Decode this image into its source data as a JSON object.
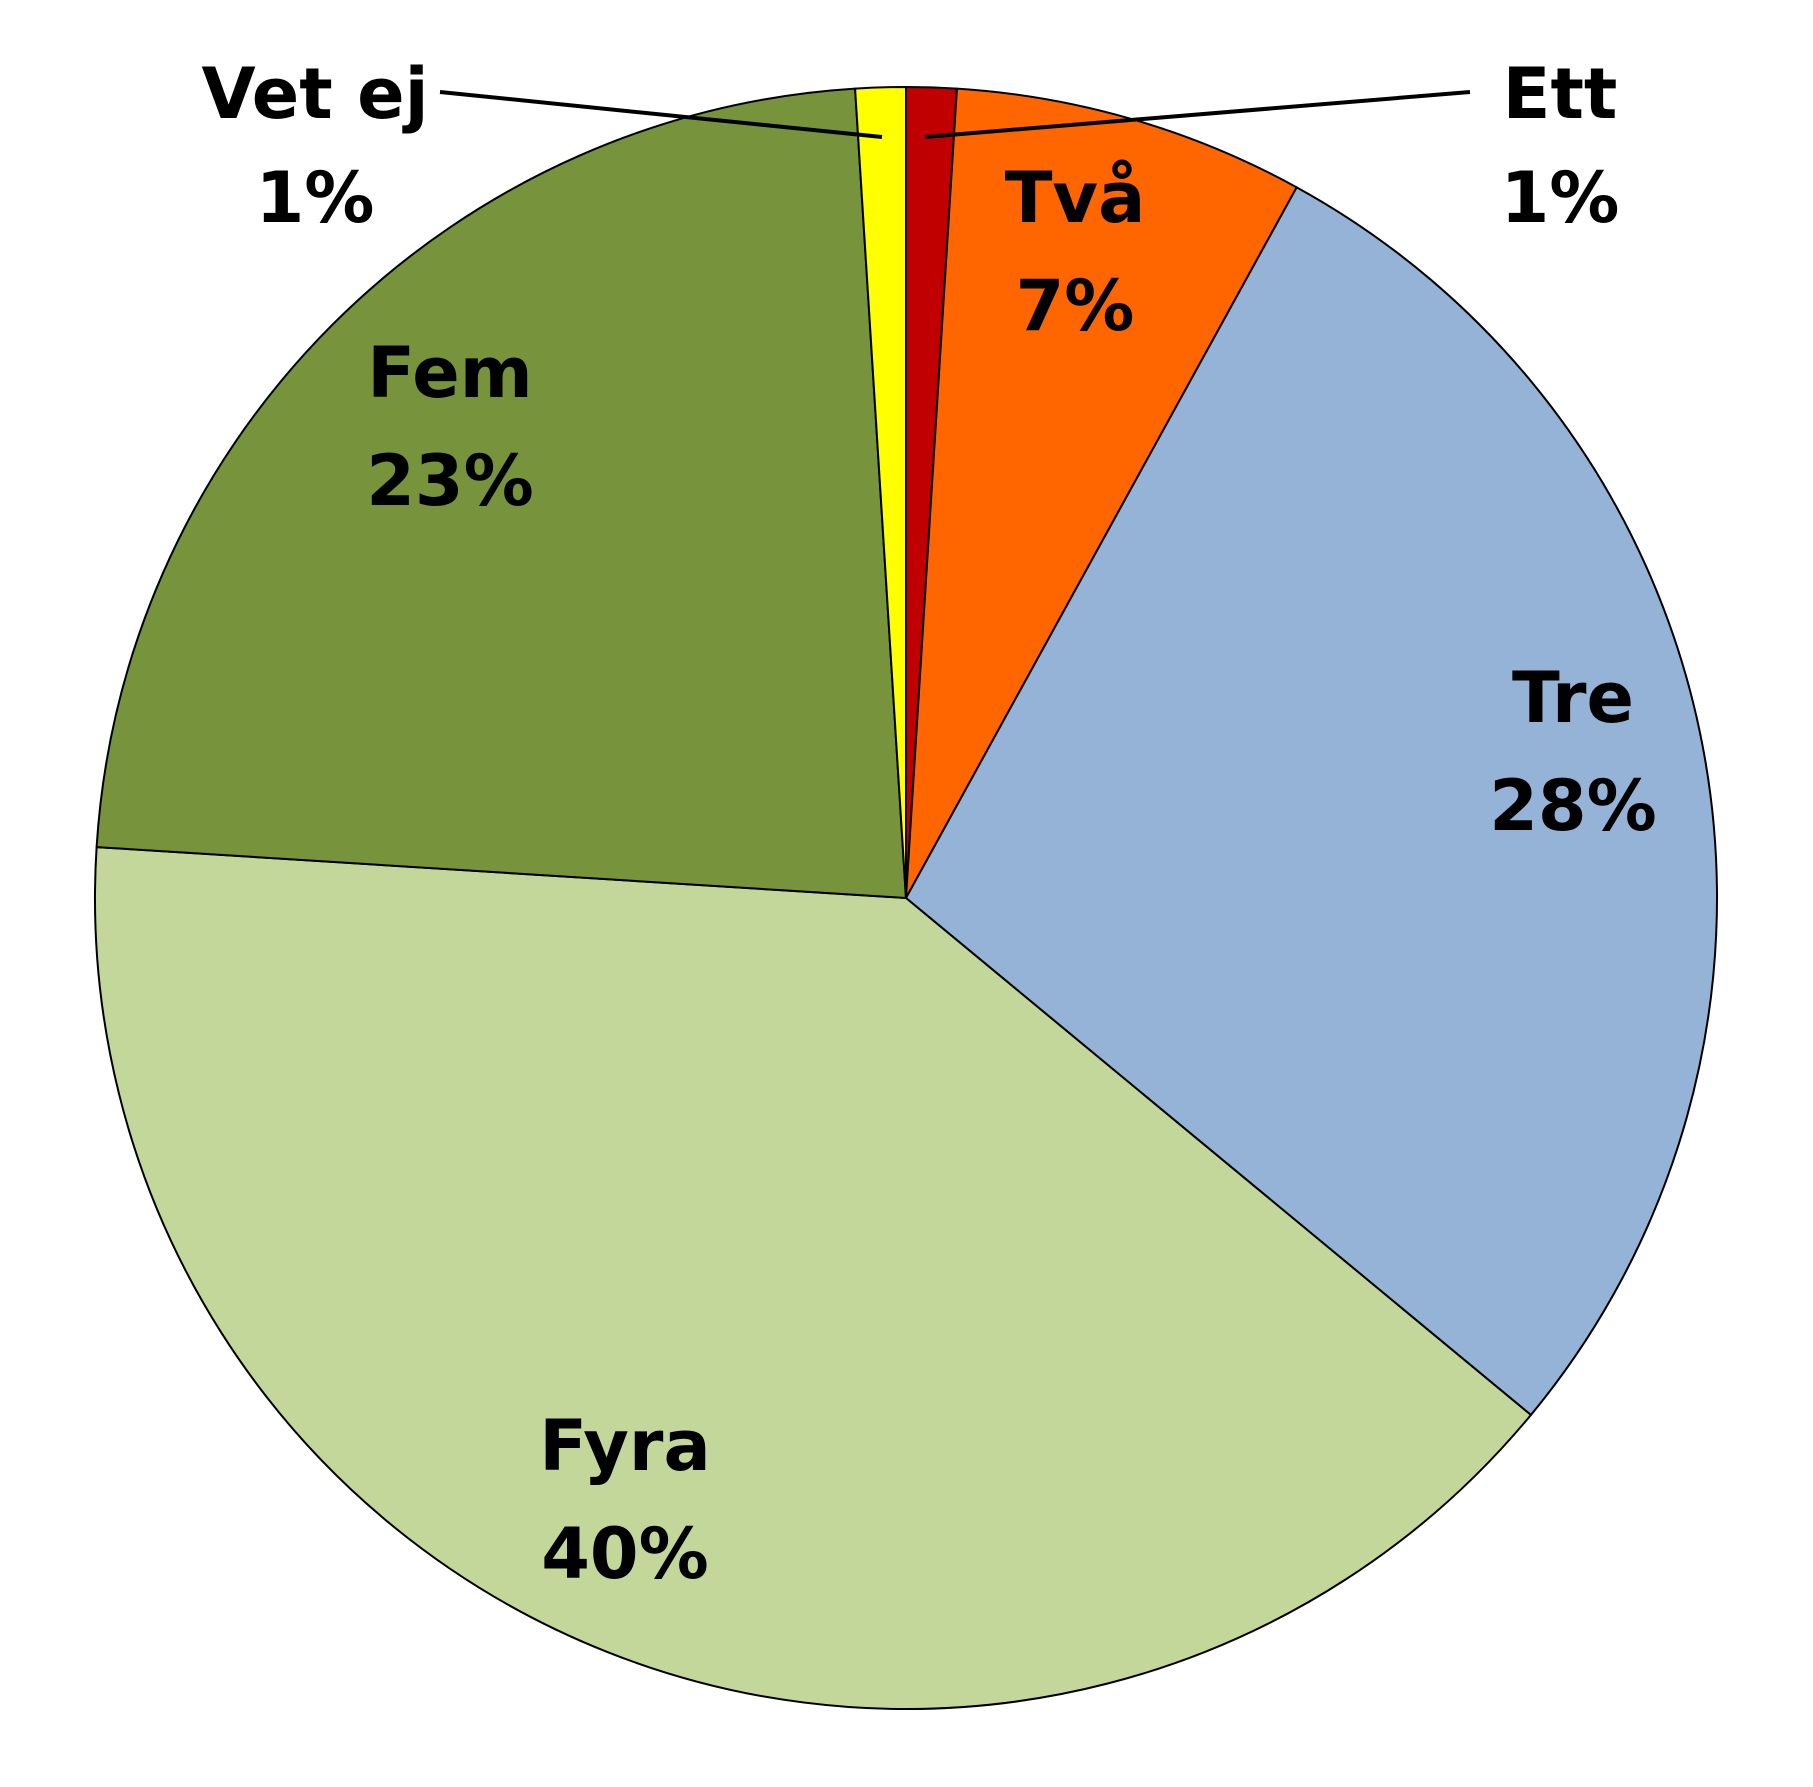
{
  "chart_data": {
    "type": "pie",
    "start": "top",
    "direction": "clockwise",
    "slices": [
      {
        "label": "Ett",
        "percent_label": "1%",
        "value": 1,
        "color": "#C00000"
      },
      {
        "label": "Två",
        "percent_label": "7%",
        "value": 7,
        "color": "#FF6600"
      },
      {
        "label": "Tre",
        "percent_label": "28%",
        "value": 28,
        "color": "#95B3D7"
      },
      {
        "label": "Fyra",
        "percent_label": "40%",
        "value": 40,
        "color": "#C4D79B"
      },
      {
        "label": "Fem",
        "percent_label": "23%",
        "value": 23,
        "color": "#77933C"
      },
      {
        "label": "Vet ej",
        "percent_label": "1%",
        "value": 1,
        "color": "#FFFF00"
      }
    ]
  }
}
